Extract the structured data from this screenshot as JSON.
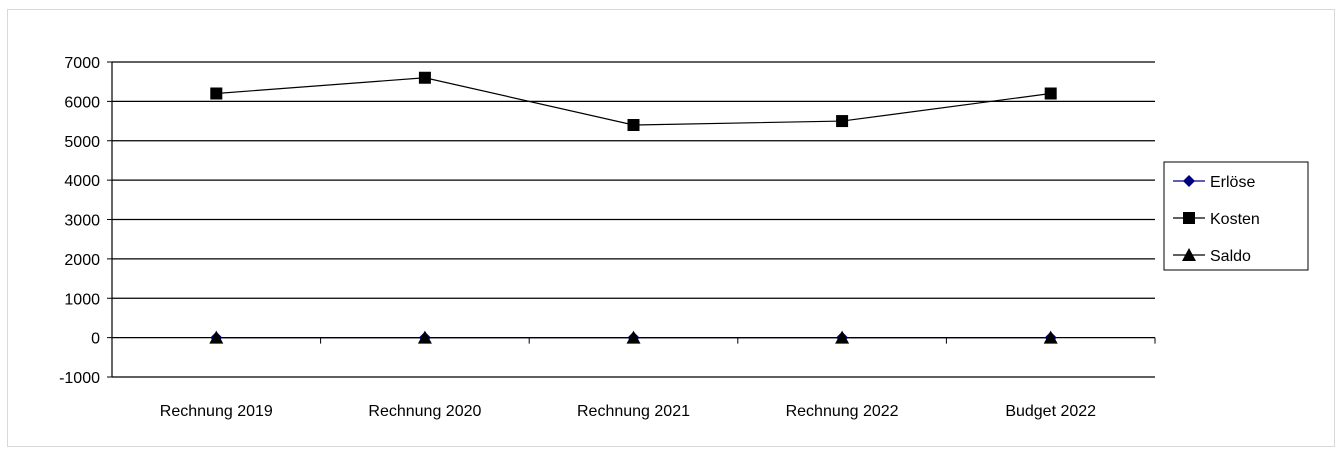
{
  "chart_data": {
    "type": "line",
    "title": "",
    "xlabel": "",
    "ylabel": "",
    "categories": [
      "Rechnung 2019",
      "Rechnung 2020",
      "Rechnung 2021",
      "Rechnung 2022",
      "Budget 2022"
    ],
    "ylim": [
      -1000,
      7000
    ],
    "yticks": [
      "7000",
      "6000",
      "5000",
      "4000",
      "3000",
      "2000",
      "1000",
      "0",
      "-1000"
    ],
    "grid": true,
    "legend_position": "right",
    "series": [
      {
        "name": "Erlöse",
        "marker": "diamond",
        "color": "#000080",
        "values": [
          0,
          0,
          0,
          0,
          0
        ]
      },
      {
        "name": "Kosten",
        "marker": "square",
        "color": "#000000",
        "values": [
          6200,
          6600,
          5400,
          5500,
          6200
        ]
      },
      {
        "name": "Saldo",
        "marker": "triangle",
        "color": "#000000",
        "values": [
          0,
          0,
          0,
          0,
          0
        ]
      }
    ]
  }
}
